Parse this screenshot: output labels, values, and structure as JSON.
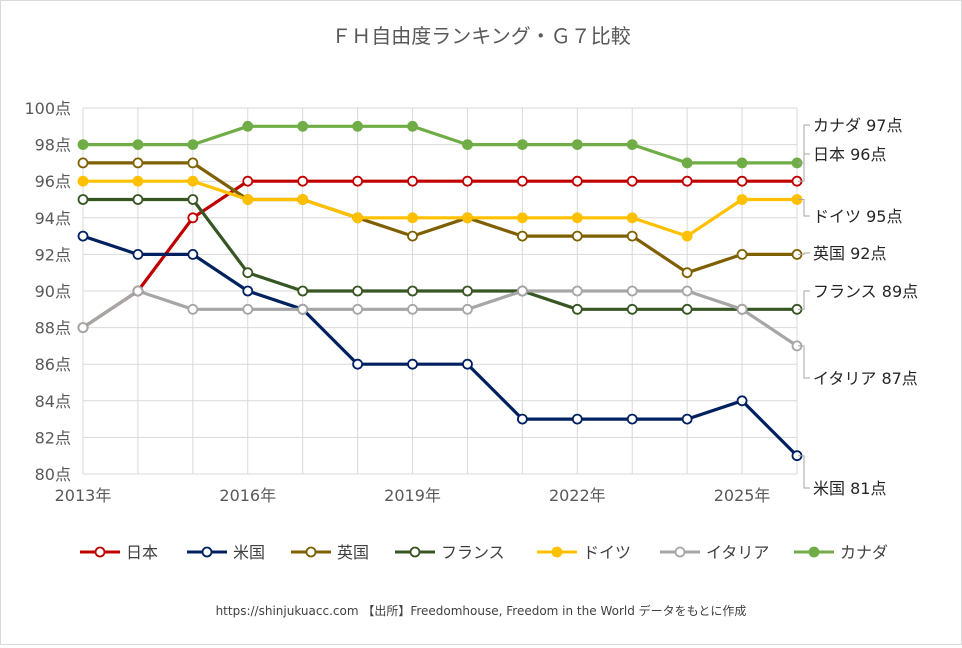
{
  "chart_data": {
    "type": "line",
    "title": "ＦＨ自由度ランキング・Ｇ７比較",
    "x": [
      "2013年",
      "2014年",
      "2015年",
      "2016年",
      "2017年",
      "2018年",
      "2019年",
      "2020年",
      "2021年",
      "2022年",
      "2023年",
      "2024年",
      "2025年",
      "2026年"
    ],
    "xtick_labels": [
      "2013年",
      "2016年",
      "2019年",
      "2022年",
      "2025年"
    ],
    "ylim": [
      80,
      100
    ],
    "ytick_labels": [
      "80点",
      "82点",
      "84点",
      "86点",
      "88点",
      "90点",
      "92点",
      "94点",
      "96点",
      "98点",
      "100点"
    ],
    "grid": true,
    "legend_position": "bottom",
    "series": [
      {
        "name": "日本",
        "color": "#c00000",
        "marker": "open",
        "values": [
          88,
          90,
          94,
          96,
          96,
          96,
          96,
          96,
          96,
          96,
          96,
          96,
          96,
          96
        ],
        "end_label": "日本 96点"
      },
      {
        "name": "米国",
        "color": "#002060",
        "marker": "open",
        "values": [
          93,
          92,
          92,
          90,
          89,
          86,
          86,
          86,
          83,
          83,
          83,
          83,
          84,
          81
        ],
        "end_label": "米国 81点"
      },
      {
        "name": "英国",
        "color": "#7f6000",
        "marker": "open",
        "values": [
          97,
          97,
          97,
          95,
          95,
          94,
          93,
          94,
          93,
          93,
          93,
          91,
          92,
          92
        ],
        "end_label": "英国 92点"
      },
      {
        "name": "フランス",
        "color": "#375623",
        "marker": "open",
        "values": [
          95,
          95,
          95,
          91,
          90,
          90,
          90,
          90,
          90,
          89,
          89,
          89,
          89,
          89
        ],
        "end_label": "フランス 89点"
      },
      {
        "name": "ドイツ",
        "color": "#ffc000",
        "marker": "filled",
        "values": [
          96,
          96,
          96,
          95,
          95,
          94,
          94,
          94,
          94,
          94,
          94,
          93,
          95,
          95
        ],
        "end_label": "ドイツ 95点"
      },
      {
        "name": "イタリア",
        "color": "#a6a6a6",
        "marker": "open",
        "values": [
          88,
          90,
          89,
          89,
          89,
          89,
          89,
          89,
          90,
          90,
          90,
          90,
          89,
          87
        ],
        "end_label": "イタリア 87点"
      },
      {
        "name": "カナダ",
        "color": "#70ad47",
        "marker": "filled",
        "values": [
          98,
          98,
          98,
          99,
          99,
          99,
          99,
          98,
          98,
          98,
          98,
          97,
          97,
          97
        ],
        "end_label": "カナダ 97点"
      }
    ],
    "source_note": "https://shinjukuacc.com 【出所】Freedomhouse, Freedom in the World データをもとに作成"
  }
}
